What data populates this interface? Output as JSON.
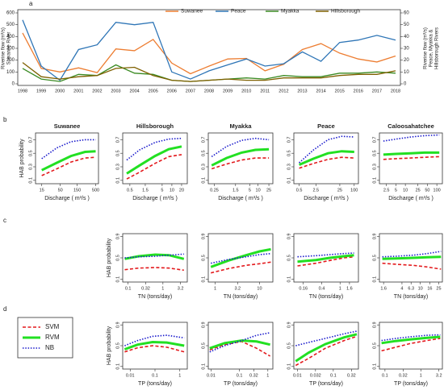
{
  "chart_data": [
    {
      "type": "line",
      "panel": "a",
      "y_label": [
        "Riverine flow (m³/s)",
        "Suwanee River"
      ],
      "y2_label": [
        "Riverine flow (m³/s)",
        "Peace, Myakka &",
        "Hillsborough Rivers"
      ],
      "categories": [
        "1998",
        "1999",
        "2000",
        "2001",
        "2002",
        "2003",
        "2004",
        "2005",
        "2006",
        "2007",
        "2008",
        "2009",
        "2010",
        "2011",
        "2012",
        "2013",
        "2014",
        "2015",
        "2016",
        "2017",
        "2018"
      ],
      "ylim": [
        0,
        600
      ],
      "yticks": [
        0,
        100,
        200,
        300,
        400,
        500,
        600
      ],
      "y2lim": [
        0,
        60
      ],
      "y2ticks": [
        0,
        10,
        20,
        30,
        40,
        50,
        60
      ],
      "series": [
        {
          "name": "Suwanee",
          "color": "#ed7d31",
          "values": [
            430,
            130,
            100,
            135,
            95,
            295,
            280,
            375,
            175,
            85,
            150,
            210,
            215,
            110,
            165,
            290,
            340,
            260,
            210,
            185,
            235
          ]
        },
        {
          "name": "Peace",
          "color": "#2e75b6",
          "axis": "y2",
          "values": [
            54,
            15,
            3,
            29,
            33,
            52,
            50,
            52,
            10,
            4,
            11,
            16,
            21,
            15,
            17,
            27,
            19,
            35,
            37,
            41,
            37
          ]
        },
        {
          "name": "Myakka",
          "color": "#3a8a22",
          "axis": "y2",
          "values": [
            13,
            4,
            2,
            8,
            7,
            16,
            9,
            8,
            3,
            2,
            3,
            4,
            5,
            4,
            7,
            6,
            6,
            9,
            9,
            10,
            9
          ]
        },
        {
          "name": "Hillsborough",
          "color": "#7f6000",
          "axis": "y2",
          "values": [
            18,
            6,
            4,
            6,
            7,
            13,
            14,
            7,
            3,
            2,
            3,
            4,
            3,
            3,
            5,
            5,
            5,
            7,
            8,
            8,
            11
          ]
        }
      ]
    },
    {
      "type": "line",
      "xscale": "log",
      "panel": "b",
      "title": "Suwanee",
      "y_label": "HAB probability",
      "x_label": "Discharge ( m³/s )",
      "xlim": [
        10,
        600
      ],
      "xticks": [
        15,
        50,
        150,
        500
      ],
      "ylim": [
        0.05,
        0.8
      ],
      "yticks": [
        0.1,
        0.3,
        0.5,
        0.7
      ],
      "x": [
        15,
        40,
        100,
        250,
        500
      ],
      "series": [
        {
          "values": [
            0.17,
            0.27,
            0.37,
            0.43,
            0.44
          ]
        },
        {
          "values": [
            0.25,
            0.36,
            0.46,
            0.52,
            0.53
          ]
        },
        {
          "values": [
            0.42,
            0.58,
            0.67,
            0.7,
            0.7
          ]
        }
      ]
    },
    {
      "type": "line",
      "xscale": "log",
      "title": "Hillsborough",
      "x_label": "Discharge ( m³/s )",
      "xlim": [
        0.3,
        30
      ],
      "xticks": [
        0.5,
        1.5,
        5,
        10,
        20
      ],
      "ylim": [
        0.05,
        0.8
      ],
      "yticks": [
        0.1,
        0.3,
        0.5,
        0.7
      ],
      "x": [
        0.4,
        1,
        3,
        8,
        20
      ],
      "series": [
        {
          "values": [
            0.12,
            0.22,
            0.35,
            0.45,
            0.48
          ]
        },
        {
          "values": [
            0.2,
            0.32,
            0.46,
            0.56,
            0.6
          ]
        },
        {
          "values": [
            0.4,
            0.55,
            0.66,
            0.71,
            0.72
          ]
        }
      ]
    },
    {
      "type": "line",
      "xscale": "log",
      "title": "Myakka",
      "x_label": "Discharge ( m³/s )",
      "xlim": [
        0.15,
        35
      ],
      "xticks": [
        0.25,
        1.5,
        5,
        10,
        25
      ],
      "ylim": [
        0.05,
        0.8
      ],
      "yticks": [
        0.1,
        0.3,
        0.5,
        0.7
      ],
      "x": [
        0.2,
        0.7,
        2.5,
        8,
        25
      ],
      "series": [
        {
          "values": [
            0.27,
            0.34,
            0.4,
            0.43,
            0.43
          ]
        },
        {
          "values": [
            0.32,
            0.43,
            0.51,
            0.55,
            0.56
          ]
        },
        {
          "values": [
            0.45,
            0.6,
            0.69,
            0.72,
            0.7
          ]
        }
      ]
    },
    {
      "type": "line",
      "xscale": "log",
      "title": "Peace",
      "x_label": "Discharge ( m³/s )",
      "xlim": [
        0.3,
        150
      ],
      "xticks": [
        0.5,
        2.5,
        25,
        100
      ],
      "ylim": [
        0.05,
        0.8
      ],
      "yticks": [
        0.1,
        0.3,
        0.5,
        0.7
      ],
      "x": [
        0.5,
        2,
        8,
        30,
        100
      ],
      "series": [
        {
          "values": [
            0.28,
            0.35,
            0.41,
            0.44,
            0.43
          ]
        },
        {
          "values": [
            0.33,
            0.42,
            0.5,
            0.53,
            0.52
          ]
        },
        {
          "values": [
            0.36,
            0.55,
            0.7,
            0.75,
            0.74
          ]
        }
      ]
    },
    {
      "type": "line",
      "xscale": "log",
      "title": "Caloosahatchee",
      "x_label": "Discharge ( m³/s )",
      "xlim": [
        1.5,
        150
      ],
      "xticks": [
        2.5,
        5,
        10,
        25,
        50,
        100
      ],
      "ylim": [
        0.05,
        0.8
      ],
      "yticks": [
        0.1,
        0.3,
        0.5,
        0.7
      ],
      "x": [
        2,
        5,
        15,
        40,
        120
      ],
      "series": [
        {
          "values": [
            0.41,
            0.42,
            0.43,
            0.44,
            0.45
          ]
        },
        {
          "values": [
            0.48,
            0.49,
            0.5,
            0.51,
            0.51
          ]
        },
        {
          "values": [
            0.68,
            0.71,
            0.74,
            0.76,
            0.77
          ]
        }
      ]
    },
    {
      "type": "line",
      "xscale": "log",
      "panel": "c",
      "y_label": "HAB probability",
      "x_label": "TN (tons/day)",
      "xlim": [
        0.07,
        5
      ],
      "xticks": [
        0.1,
        0.32,
        1,
        3.2
      ],
      "ylim": [
        0.05,
        0.95
      ],
      "yticks": [
        0.1,
        0.5,
        0.9
      ],
      "x": [
        0.08,
        0.2,
        0.6,
        1.5,
        4
      ],
      "series": [
        {
          "values": [
            0.28,
            0.31,
            0.32,
            0.31,
            0.27
          ]
        },
        {
          "values": [
            0.48,
            0.53,
            0.56,
            0.55,
            0.48
          ]
        },
        {
          "values": [
            0.5,
            0.52,
            0.53,
            0.55,
            0.57
          ]
        }
      ]
    },
    {
      "type": "line",
      "xscale": "log",
      "x_label": "TN (tons/day)",
      "xlim": [
        0.7,
        20
      ],
      "xticks": [
        1,
        3.2,
        10
      ],
      "ylim": [
        0.05,
        0.95
      ],
      "yticks": [
        0.1,
        0.5,
        0.9
      ],
      "x": [
        0.8,
        2,
        5,
        10,
        18
      ],
      "series": [
        {
          "values": [
            0.22,
            0.3,
            0.36,
            0.39,
            0.42
          ]
        },
        {
          "values": [
            0.33,
            0.45,
            0.55,
            0.62,
            0.66
          ]
        },
        {
          "values": [
            0.4,
            0.47,
            0.52,
            0.56,
            0.58
          ]
        }
      ]
    },
    {
      "type": "line",
      "xscale": "log",
      "x_label": "TN (tons/day)",
      "xlim": [
        0.1,
        2.5
      ],
      "xticks": [
        0.16,
        0.4,
        1,
        1.6
      ],
      "ylim": [
        0.05,
        0.95
      ],
      "yticks": [
        0.1,
        0.5,
        0.9
      ],
      "x": [
        0.12,
        0.3,
        0.6,
        1.2,
        2
      ],
      "series": [
        {
          "values": [
            0.35,
            0.4,
            0.45,
            0.5,
            0.52
          ]
        },
        {
          "values": [
            0.43,
            0.46,
            0.5,
            0.53,
            0.55
          ]
        },
        {
          "values": [
            0.52,
            0.54,
            0.56,
            0.58,
            0.59
          ]
        }
      ]
    },
    {
      "type": "line",
      "xscale": "log",
      "x_label": "TN (tons/day)",
      "xlim": [
        1.3,
        30
      ],
      "xticks": [
        1.6,
        4,
        6.3,
        10,
        16,
        25
      ],
      "ylim": [
        0.05,
        0.95
      ],
      "yticks": [
        0.1,
        0.5,
        0.9
      ],
      "x": [
        1.5,
        3,
        7,
        14,
        28
      ],
      "series": [
        {
          "values": [
            0.4,
            0.38,
            0.36,
            0.33,
            0.29
          ]
        },
        {
          "values": [
            0.48,
            0.49,
            0.5,
            0.51,
            0.52
          ]
        },
        {
          "values": [
            0.52,
            0.53,
            0.55,
            0.58,
            0.62
          ]
        }
      ]
    },
    {
      "type": "line",
      "xscale": "log",
      "panel": "d",
      "y_label": "HAB probability",
      "x_label": "TP (tons/day)",
      "xlim": [
        0.005,
        2
      ],
      "xticks": [
        0.01,
        0.1,
        1
      ],
      "ylim": [
        0.05,
        0.95
      ],
      "yticks": [
        0.1,
        0.5,
        0.9
      ],
      "x": [
        0.006,
        0.02,
        0.08,
        0.3,
        1.5
      ],
      "series": [
        {
          "values": [
            0.38,
            0.46,
            0.5,
            0.47,
            0.38
          ]
        },
        {
          "values": [
            0.43,
            0.52,
            0.57,
            0.56,
            0.5
          ]
        },
        {
          "values": [
            0.5,
            0.6,
            0.68,
            0.7,
            0.65
          ]
        }
      ]
    },
    {
      "type": "line",
      "xscale": "log",
      "x_label": "TP (tons/day)",
      "xlim": [
        0.008,
        1.5
      ],
      "xticks": [
        0.01,
        0.1,
        0.32,
        1
      ],
      "ylim": [
        0.05,
        0.95
      ],
      "yticks": [
        0.1,
        0.5,
        0.9
      ],
      "x": [
        0.009,
        0.03,
        0.12,
        0.4,
        1.2
      ],
      "series": [
        {
          "values": [
            0.42,
            0.52,
            0.58,
            0.45,
            0.3
          ]
        },
        {
          "values": [
            0.45,
            0.55,
            0.6,
            0.58,
            0.52
          ]
        },
        {
          "values": [
            0.38,
            0.5,
            0.6,
            0.7,
            0.75
          ]
        }
      ]
    },
    {
      "type": "line",
      "xscale": "log",
      "x_label": "TP (tons/day)",
      "xlim": [
        0.008,
        0.5
      ],
      "xticks": [
        0.01,
        0.032,
        0.1,
        0.32
      ],
      "ylim": [
        0.05,
        0.95
      ],
      "yticks": [
        0.1,
        0.5,
        0.9
      ],
      "x": [
        0.009,
        0.02,
        0.06,
        0.2,
        0.45
      ],
      "series": [
        {
          "values": [
            0.12,
            0.25,
            0.45,
            0.6,
            0.68
          ]
        },
        {
          "values": [
            0.2,
            0.36,
            0.53,
            0.66,
            0.72
          ]
        },
        {
          "values": [
            0.5,
            0.56,
            0.64,
            0.73,
            0.78
          ]
        }
      ]
    },
    {
      "type": "line",
      "xscale": "log",
      "x_label": "TP (tons/day)",
      "xlim": [
        0.07,
        4
      ],
      "xticks": [
        0.1,
        0.32,
        1,
        3.2
      ],
      "ylim": [
        0.05,
        0.95
      ],
      "yticks": [
        0.1,
        0.5,
        0.9
      ],
      "x": [
        0.08,
        0.2,
        0.5,
        1.5,
        3.5
      ],
      "series": [
        {
          "values": [
            0.4,
            0.47,
            0.54,
            0.6,
            0.64
          ]
        },
        {
          "values": [
            0.55,
            0.59,
            0.62,
            0.65,
            0.67
          ]
        },
        {
          "values": [
            0.6,
            0.64,
            0.67,
            0.7,
            0.71
          ]
        }
      ]
    }
  ],
  "hab_series": [
    {
      "name": "SVM",
      "color": "#e3191c",
      "dash": "dashed"
    },
    {
      "name": "RVM",
      "color": "#22e022",
      "dash": "solid"
    },
    {
      "name": "NB",
      "color": "#1a1acc",
      "dash": "dotted"
    }
  ]
}
